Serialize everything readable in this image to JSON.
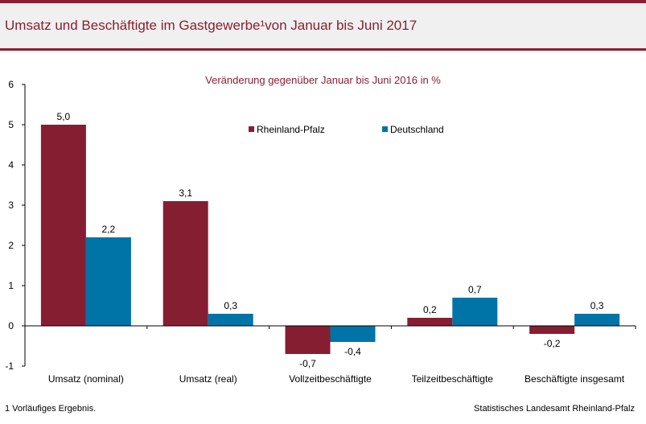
{
  "header": {
    "title": "Umsatz und Beschäftigte im Gastgewerbe¹von Januar bis Juni 2017"
  },
  "footer": {
    "footnote": "1 Vorläufiges Ergebnis.",
    "source": "Statistisches Landesamt Rheinland-Pfalz"
  },
  "colors": {
    "accent": "#8b1e32",
    "rlp": "#861e32",
    "de": "#0073a7",
    "header_bg": "#f0f0f0"
  },
  "chart_data": {
    "type": "bar",
    "subtitle": "Veränderung gegenüber Januar bis Juni 2016 in %",
    "categories": [
      "Umsatz (nominal)",
      "Umsatz (real)",
      "Vollzeitbeschäftigte",
      "Teilzeitbeschäftigte",
      "Beschäftigte insgesamt"
    ],
    "series": [
      {
        "name": "Rheinland-Pfalz",
        "values": [
          5.0,
          3.1,
          -0.7,
          0.2,
          -0.2
        ],
        "labels": [
          "5,0",
          "3,1",
          "-0,7",
          "0,2",
          "-0,2"
        ],
        "color": "#861e32"
      },
      {
        "name": "Deutschland",
        "values": [
          2.2,
          0.3,
          -0.4,
          0.7,
          0.3
        ],
        "labels": [
          "2,2",
          "0,3",
          "-0,4",
          "0,7",
          "0,3"
        ],
        "color": "#0073a7"
      }
    ],
    "ylim": [
      -1,
      6
    ],
    "yticks": [
      "-1",
      "0",
      "1",
      "2",
      "3",
      "4",
      "5",
      "6"
    ],
    "legend": "top-center",
    "grid": false
  }
}
